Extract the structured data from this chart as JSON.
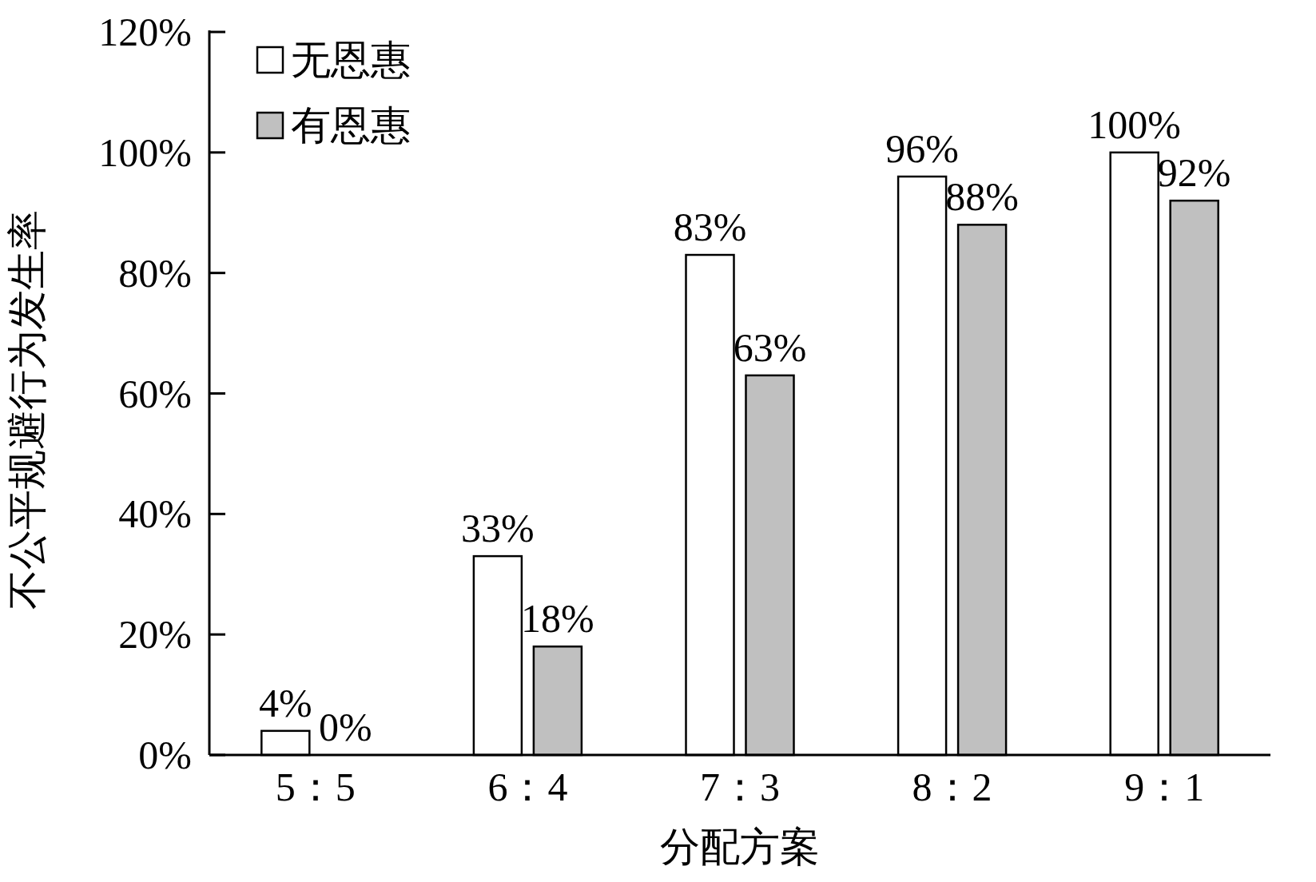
{
  "chart_data": {
    "type": "bar",
    "xlabel": "分配方案",
    "ylabel": "不公平规避行为发生率",
    "categories": [
      "5：5",
      "6：4",
      "7：3",
      "8：2",
      "9：1"
    ],
    "series": [
      {
        "name": "无恩惠",
        "color": "#ffffff",
        "values": [
          4,
          33,
          83,
          96,
          100
        ],
        "value_labels": [
          "4%",
          "33%",
          "83%",
          "96%",
          "100%"
        ]
      },
      {
        "name": "有恩惠",
        "color": "#c0c0c0",
        "values": [
          0,
          18,
          63,
          88,
          92
        ],
        "value_labels": [
          "0%",
          "18%",
          "63%",
          "88%",
          "92%"
        ]
      }
    ],
    "ylim": [
      0,
      120
    ],
    "yticks": [
      {
        "value": 0,
        "label": "0%"
      },
      {
        "value": 20,
        "label": "20%"
      },
      {
        "value": 40,
        "label": "40%"
      },
      {
        "value": 60,
        "label": "60%"
      },
      {
        "value": 80,
        "label": "80%"
      },
      {
        "value": 100,
        "label": "100%"
      },
      {
        "value": 120,
        "label": "120%"
      }
    ],
    "grid": false,
    "legend": "top left"
  }
}
